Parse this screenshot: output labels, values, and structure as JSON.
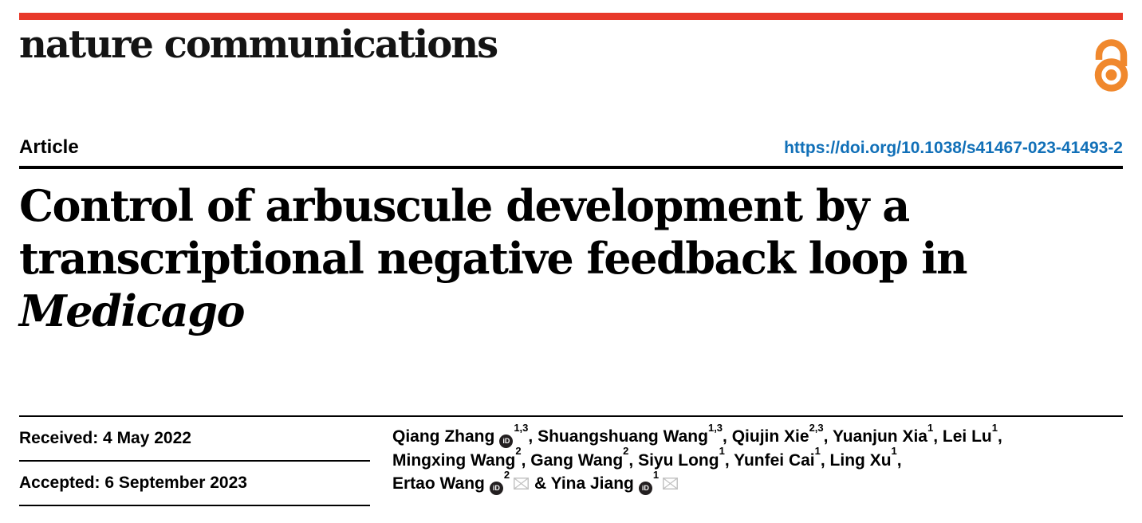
{
  "masthead": {
    "journal_name": "nature communications"
  },
  "article": {
    "label": "Article",
    "doi_url": "https://doi.org/10.1038/s41467-023-41493-2",
    "title_line1": "Control of arbuscule development by a",
    "title_line2": "transcriptional negative feedback loop in",
    "title_italic": "Medicago"
  },
  "dates": {
    "received_label": "Received: 4 May 2022",
    "accepted_label": "Accepted: 6 September 2023"
  },
  "authors": {
    "orcid_icon_label": "iD",
    "lines": [
      [
        {
          "name": "Qiang Zhang",
          "orcid": true,
          "sup": "1,3",
          "mail": false,
          "sep": ", "
        },
        {
          "name": "Shuangshuang Wang",
          "orcid": false,
          "sup": "1,3",
          "mail": false,
          "sep": ", "
        },
        {
          "name": "Qiujin Xie",
          "orcid": false,
          "sup": "2,3",
          "mail": false,
          "sep": ", "
        },
        {
          "name": "Yuanjun Xia",
          "orcid": false,
          "sup": "1",
          "mail": false,
          "sep": ", "
        },
        {
          "name": "Lei Lu",
          "orcid": false,
          "sup": "1",
          "mail": false,
          "sep": ","
        }
      ],
      [
        {
          "name": "Mingxing Wang",
          "orcid": false,
          "sup": "2",
          "mail": false,
          "sep": ", "
        },
        {
          "name": "Gang Wang",
          "orcid": false,
          "sup": "2",
          "mail": false,
          "sep": ", "
        },
        {
          "name": "Siyu Long",
          "orcid": false,
          "sup": "1",
          "mail": false,
          "sep": ", "
        },
        {
          "name": "Yunfei Cai",
          "orcid": false,
          "sup": "1",
          "mail": false,
          "sep": ", "
        },
        {
          "name": "Ling Xu",
          "orcid": false,
          "sup": "1",
          "mail": false,
          "sep": ","
        }
      ],
      [
        {
          "name": "Ertao Wang",
          "orcid": true,
          "sup": "2",
          "mail": true,
          "sep": " & "
        },
        {
          "name": "Yina Jiang",
          "orcid": true,
          "sup": "1",
          "mail": true,
          "sep": ""
        }
      ]
    ]
  },
  "icons": {
    "open_access": "open-access-padlock",
    "orcid": "orcid-id-badge",
    "mail": "envelope"
  },
  "colors": {
    "brand_red": "#e8392a",
    "open_access_orange": "#f0882d",
    "link_blue": "#1170b8",
    "mail_gray": "#c3c3c3",
    "text_black": "#000000"
  }
}
